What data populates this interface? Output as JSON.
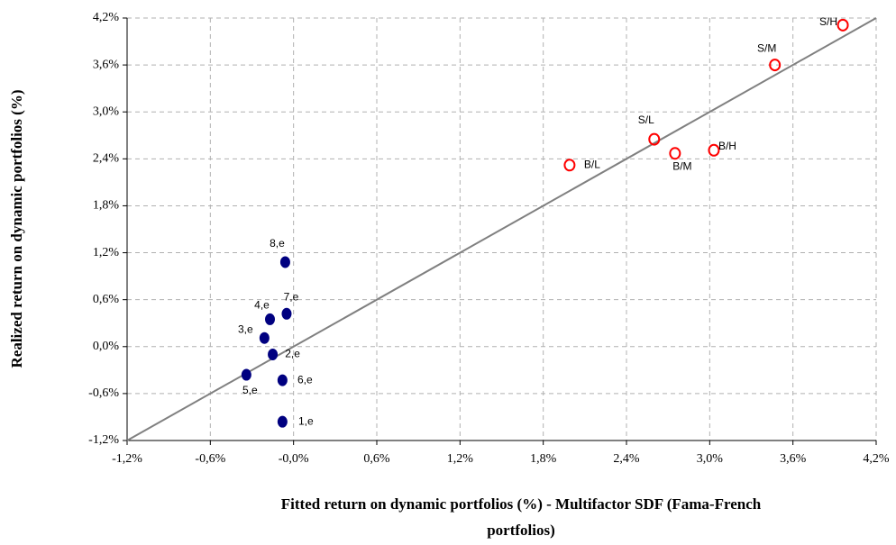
{
  "chart_data": {
    "type": "scatter",
    "x_label": [
      "Fitted return on dynamic portfolios (%) - Multifactor SDF (Fama-French",
      "portfolios)"
    ],
    "y_label": "Realized return on dynamic portfolios (%)",
    "xlim": [
      -1.2,
      4.2
    ],
    "ylim": [
      -1.2,
      4.2
    ],
    "grid": true,
    "xticks": [
      {
        "value": -1.2,
        "label": "-1,2%"
      },
      {
        "value": -0.6,
        "label": "-0,6%"
      },
      {
        "value": 0,
        "label": "-0,0%"
      },
      {
        "value": 0.6,
        "label": "0,6%"
      },
      {
        "value": 1.2,
        "label": "1,2%"
      },
      {
        "value": 1.8,
        "label": "1,8%"
      },
      {
        "value": 2.4,
        "label": "2,4%"
      },
      {
        "value": 3.0,
        "label": "3,0%"
      },
      {
        "value": 3.6,
        "label": "3,6%"
      },
      {
        "value": 4.2,
        "label": "4,2%"
      }
    ],
    "yticks": [
      {
        "value": -1.2,
        "label": "-1,2%"
      },
      {
        "value": -0.6,
        "label": "-0,6%"
      },
      {
        "value": 0,
        "label": "0,0%"
      },
      {
        "value": 0.6,
        "label": "0,6%"
      },
      {
        "value": 1.2,
        "label": "1,2%"
      },
      {
        "value": 1.8,
        "label": "1,8%"
      },
      {
        "value": 2.4,
        "label": "2,4%"
      },
      {
        "value": 3.0,
        "label": "3,0%"
      },
      {
        "value": 3.6,
        "label": "3,6%"
      },
      {
        "value": 4.2,
        "label": "4,2%"
      }
    ],
    "series": [
      {
        "color": "#ff0000",
        "marker": "open",
        "labels": [
          "S/H",
          "S/M",
          "S/L",
          "B/M",
          "B/H",
          "B/L"
        ],
        "x": [
          3.96,
          3.47,
          2.6,
          2.75,
          3.03,
          1.99
        ],
        "values": [
          4.11,
          3.6,
          2.65,
          2.47,
          2.51,
          2.32
        ]
      },
      {
        "color": "#000080",
        "marker": "filled",
        "labels": [
          "1,e",
          "2,e",
          "3,e",
          "4,e",
          "5,e",
          "6,e",
          "7,e",
          "8,e"
        ],
        "x": [
          -0.08,
          -0.15,
          -0.21,
          -0.17,
          -0.34,
          -0.08,
          -0.05,
          -0.06
        ],
        "values": [
          -0.96,
          -0.1,
          0.11,
          0.35,
          -0.36,
          -0.43,
          0.42,
          1.08
        ]
      }
    ]
  }
}
